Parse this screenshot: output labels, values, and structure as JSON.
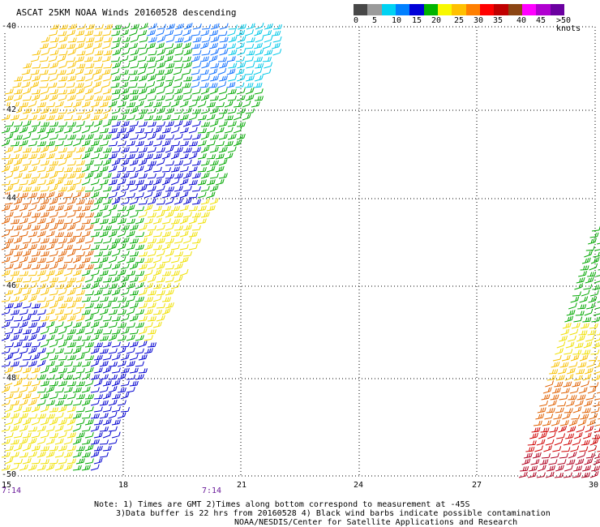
{
  "title": "ASCAT 25KM NOAA Winds 20160528 descending",
  "legend": {
    "colors": [
      "#474747",
      "#9a9a9a",
      "#00d2f2",
      "#0080ff",
      "#0000d8",
      "#00b400",
      "#f8f800",
      "#ffc000",
      "#ff7f00",
      "#ff0000",
      "#c00000",
      "#8b4513",
      "#ff00ff",
      "#b000d0",
      "#6a00a0"
    ],
    "labels": [
      "0",
      "5",
      "10",
      "15",
      "20",
      "25",
      "30",
      "35",
      "40",
      "45",
      ">50 knots"
    ]
  },
  "axes": {
    "y_labels": [
      "-40",
      "-42",
      "-44",
      "-46",
      "-48",
      "-50"
    ],
    "x_labels": [
      "15",
      "18",
      "21",
      "24",
      "27",
      "30"
    ]
  },
  "times": [
    "7:14",
    "7:14"
  ],
  "notes": [
    "Note: 1) Times are GMT 2)Times along bottom correspond to measurement at -45S",
    "3)Data buffer is 22 hrs from 20160528 4) Black wind barbs indicate possible contamination",
    "NOAA/NESDIS/Center for Satellite Applications and Research"
  ]
}
